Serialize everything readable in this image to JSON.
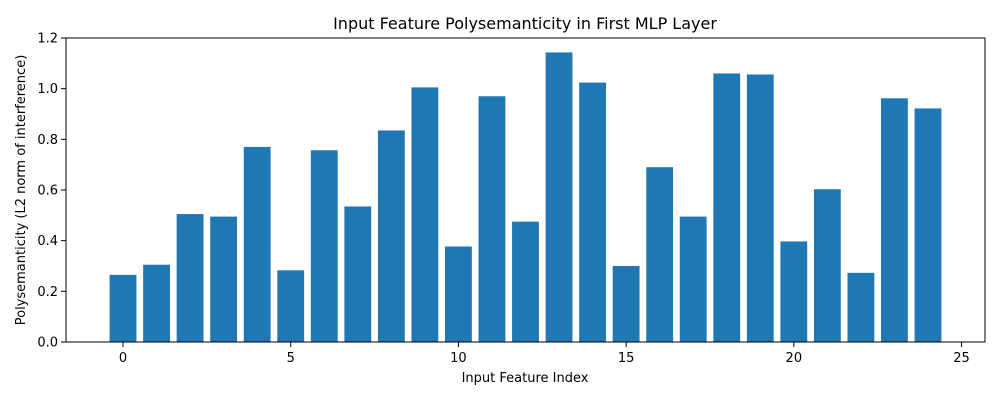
{
  "chart_data": {
    "type": "bar",
    "title": "Input Feature Polysemanticity in First MLP Layer",
    "xlabel": "Input Feature Index",
    "ylabel": "Polysemanticity (L2 norm of interference)",
    "x": [
      0,
      1,
      2,
      3,
      4,
      5,
      6,
      7,
      8,
      9,
      10,
      11,
      12,
      13,
      14,
      15,
      16,
      17,
      18,
      19,
      20,
      21,
      22,
      23,
      24
    ],
    "values": [
      0.265,
      0.305,
      0.505,
      0.495,
      0.77,
      0.283,
      0.757,
      0.535,
      0.835,
      1.005,
      0.377,
      0.97,
      0.475,
      1.143,
      1.024,
      0.3,
      0.69,
      0.495,
      1.06,
      1.056,
      0.397,
      0.603,
      0.273,
      0.962,
      0.922
    ],
    "xlim": [
      -1.7,
      25.7
    ],
    "ylim": [
      0,
      1.2
    ],
    "xticks": [
      0,
      5,
      10,
      15,
      20,
      25
    ],
    "xtick_labels": [
      "0",
      "5",
      "10",
      "15",
      "20",
      "25"
    ],
    "yticks": [
      0,
      0.2,
      0.4,
      0.6,
      0.8,
      1.0,
      1.2
    ],
    "ytick_labels": [
      "0.0",
      "0.2",
      "0.4",
      "0.6",
      "0.8",
      "1.0",
      "1.2"
    ],
    "bar_color": "#1f77b4",
    "grid": false,
    "legend": "none"
  }
}
